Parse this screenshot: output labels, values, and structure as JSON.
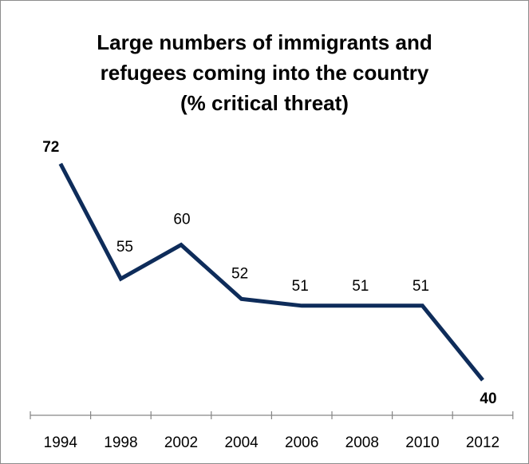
{
  "chart_data": {
    "type": "line",
    "title_lines": [
      "Large numbers of immigrants and",
      "refugees coming into the country",
      "(% critical threat)"
    ],
    "categories": [
      "1994",
      "1998",
      "2002",
      "2004",
      "2006",
      "2008",
      "2010",
      "2012"
    ],
    "series": [
      {
        "values": [
          72,
          55,
          60,
          52,
          51,
          51,
          51,
          40
        ],
        "labels": [
          "72",
          "55",
          "60",
          "52",
          "51",
          "51",
          "51",
          "40"
        ],
        "bold_labels": [
          true,
          false,
          false,
          false,
          false,
          false,
          false,
          true
        ],
        "color": "#0e2c5a"
      }
    ],
    "xlabel": "",
    "ylabel": "",
    "ylim": [
      40,
      72
    ],
    "grid": false,
    "legend": "none"
  }
}
